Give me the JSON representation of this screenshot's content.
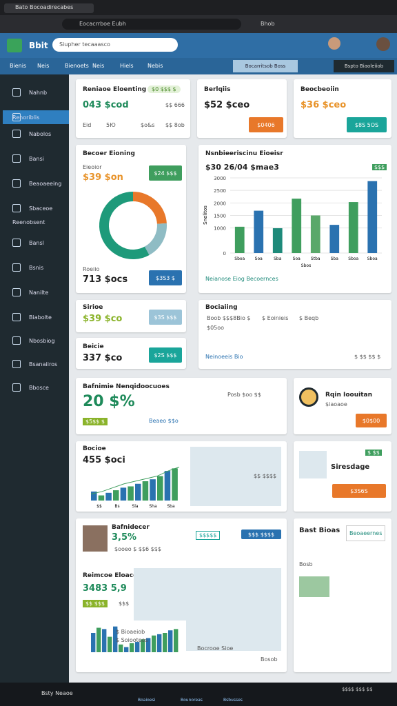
{
  "browser": {
    "tab_title": "Bato Bocoadirecabes",
    "url": "Eocacrrboe Eubh",
    "side_tab": "Bhob"
  },
  "app": {
    "logo": "Bbit",
    "search": "Siupher tecaaasco"
  },
  "nav": {
    "items": [
      "Bienis",
      "Neis",
      "Bienoets",
      "Neis",
      "Hiels",
      "Nebis"
    ],
    "actions": [
      "Bocarritsob Boss",
      "Bspto Biaoleiiob"
    ]
  },
  "sidebar": {
    "items": [
      "Nahnb",
      "Renoriblis",
      "Nabolos",
      "Bansi",
      "Beaoaeeing",
      "Sbaceoe"
    ],
    "section": "Reenobsent",
    "items2": [
      "Bansl",
      "Bsnis",
      "Nanilte",
      "Biabolte",
      "Nbosbiog",
      "Bsanaiiros",
      "Bbosce"
    ]
  },
  "cards": {
    "c1": {
      "title": "Reniaoe Eloenting",
      "value": "043 $cod",
      "badge": "$0 $$$ $",
      "meta": "$$ 666",
      "row": [
        "Eid",
        "5Ю",
        "$o&s",
        "$$ 8ob"
      ]
    },
    "c2": {
      "title": "Berlqiis",
      "value": "$52 $ceo",
      "button": "$0406"
    },
    "c3": {
      "title": "Beocbeoiin",
      "value": "$36 $ceo",
      "button": "$8S 5OS"
    },
    "donut": {
      "title": "Becoer Eioning",
      "label": "Eieoior",
      "value": "$39 $on",
      "button": "$24 $$$",
      "label2": "Roeiio",
      "value2": "713 $ocs",
      "button2": "$3S3 $",
      "values": [
        24,
        18,
        58
      ],
      "colors": [
        "#e8782a",
        "#8fbcc4",
        "#1e9a7a"
      ]
    },
    "bars": {
      "title": "Nsnbieeriscinu Eioeisr",
      "value": "$30 26/04 $mae3",
      "badge": "$$$",
      "axis_label": "Snelitos",
      "x_label": "Sbos",
      "footer": "Neianose Eiog Becoernces",
      "categories": [
        "Sboa",
        "Soa",
        "Sba",
        "Soa",
        "Stba",
        "Sba",
        "Sboa",
        "Sboa"
      ],
      "values": [
        1050,
        1690,
        990,
        2170,
        1500,
        1125,
        2035,
        2870
      ],
      "colors": [
        "#3f9e5e",
        "#2a72b0",
        "#1e8a7a",
        "#3f9e5e",
        "#5aa86a",
        "#2a72b0",
        "#3f9e5e",
        "#2a72b0"
      ],
      "ylim": [
        0,
        3000
      ],
      "yticks": [
        0,
        1000,
        1500,
        2000,
        2500,
        3000
      ]
    },
    "c4": {
      "title": "Sirioe",
      "value": "$39 $co",
      "button": "$3S $$$"
    },
    "c5": {
      "title": "Beicie",
      "value": "337 $co",
      "button": "$2S $$$"
    },
    "c6": {
      "title": "Bociaiing",
      "legend": [
        "Boob $$$8Bio $",
        "$ Eoinieis",
        "$ Beqb"
      ],
      "item": "$05oo",
      "footer": "Neinoeeis Bio",
      "meta": "$ $$ $$ $"
    },
    "c7": {
      "title": "Bafnimie Nenqidoocuoes",
      "value": "20 $%",
      "legend": "Posb $oo $$",
      "badge": "$5$$ $",
      "tag": "Beaeo $$o"
    },
    "c8": {
      "title": "Rqin Ioouitan",
      "sub": "$iaoaoe",
      "button": "$0$00"
    },
    "c9": {
      "title": "Bocioe",
      "value": "455 $oci",
      "map_label": "$$ $$$$",
      "categories": [
        "$$",
        "Bs",
        "Sla",
        "Sha",
        "Sba"
      ],
      "values": [
        14,
        8,
        12,
        16,
        20,
        22,
        26,
        30,
        33,
        38,
        46,
        50
      ],
      "colors": [
        "#2a72b0",
        "#3f9e5e"
      ],
      "line": [
        10,
        14,
        20,
        26,
        30,
        34,
        38,
        46,
        52
      ],
      "ylim": [
        0,
        60
      ]
    },
    "c10": {
      "title": "Siresdage",
      "badge": "$ $$",
      "button": "$3S6S"
    },
    "c11": {
      "title": "Bafnidecer",
      "value": "3,5%",
      "meta": "$ooeo $ $$6 $$$",
      "tag": "$$$$$",
      "button": "$$$ $$$$",
      "title2": "Reimcoe Eloacgioni",
      "value2": "3483 5,9",
      "badge2": "$$ $$$",
      "meta2": "$$$",
      "legend": [
        "$ Bioaeiob",
        "$ Soiooteos"
      ],
      "map_label": "Bocrooe Sioe",
      "footer": "Bosob",
      "values": [
        30,
        38,
        36,
        24,
        40,
        12,
        8,
        14,
        16,
        20,
        22,
        26,
        28,
        30,
        34,
        36
      ],
      "colors": [
        "#2a72b0",
        "#3f9e5e"
      ],
      "ylim": [
        0,
        45
      ]
    },
    "c12": {
      "title": "Bast Bioas",
      "button": "Beoaeernes",
      "label": "Bosb"
    }
  },
  "taskbar": {
    "search": "Bsty Neaoe",
    "apps": [
      "Boaioesi",
      "Bounoreas",
      "Bsbusses"
    ],
    "clock": "$$$$ $$$ $$"
  }
}
